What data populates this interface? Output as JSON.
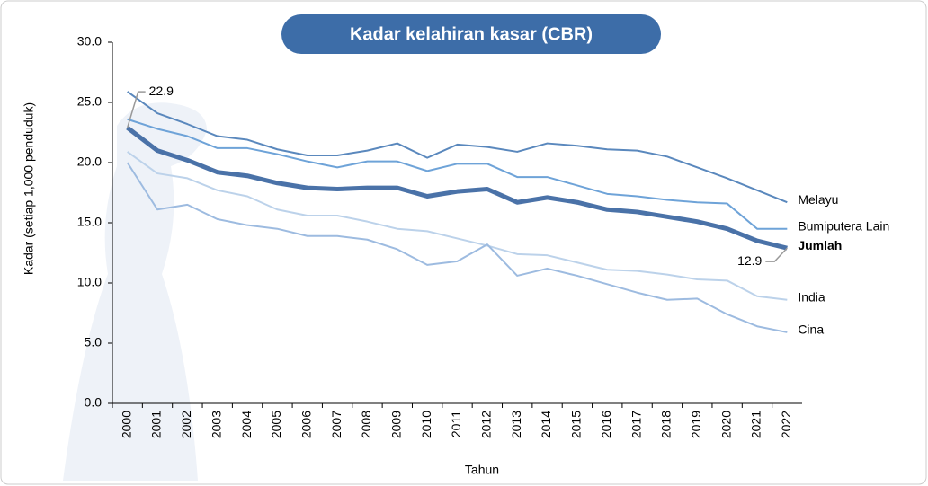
{
  "chart_data": {
    "type": "line",
    "title": "Kadar kelahiran kasar (CBR)",
    "y_label": "Kadar (setiap 1,000 penduduk)",
    "x_label": "Tahun",
    "categories": [
      "2000",
      "2001",
      "2002",
      "2003",
      "2004",
      "2005",
      "2006",
      "2007",
      "2008",
      "2009",
      "2010",
      "2011",
      "2012",
      "2013",
      "2014",
      "2015",
      "2016",
      "2017",
      "2018",
      "2019",
      "2020",
      "2021",
      "2022"
    ],
    "series": [
      {
        "name": "Melayu",
        "color": "#5a88bd",
        "width": 2,
        "values": [
          25.9,
          24.1,
          23.2,
          22.2,
          21.9,
          21.1,
          20.6,
          20.6,
          21.0,
          21.6,
          20.4,
          21.5,
          21.3,
          20.9,
          21.6,
          21.4,
          21.1,
          21.0,
          20.5,
          19.6,
          18.7,
          17.7,
          16.7
        ]
      },
      {
        "name": "Bumiputera Lain",
        "color": "#6ea3d8",
        "width": 2,
        "values": [
          23.6,
          22.8,
          22.2,
          21.2,
          21.2,
          20.7,
          20.1,
          19.6,
          20.1,
          20.1,
          19.3,
          19.9,
          19.9,
          18.8,
          18.8,
          18.1,
          17.4,
          17.2,
          16.9,
          16.7,
          16.6,
          14.5,
          14.5
        ]
      },
      {
        "name": "Jumlah",
        "color": "#4a72a8",
        "width": 5,
        "values": [
          22.9,
          21.0,
          20.2,
          19.2,
          18.9,
          18.3,
          17.9,
          17.8,
          17.9,
          17.9,
          17.2,
          17.6,
          17.8,
          16.7,
          17.1,
          16.7,
          16.1,
          15.9,
          15.5,
          15.1,
          14.5,
          13.5,
          12.9
        ]
      },
      {
        "name": "India",
        "color": "#bcd2ea",
        "width": 2,
        "values": [
          20.9,
          19.1,
          18.7,
          17.7,
          17.2,
          16.1,
          15.6,
          15.6,
          15.1,
          14.5,
          14.3,
          13.7,
          13.1,
          12.4,
          12.3,
          11.7,
          11.1,
          11.0,
          10.7,
          10.3,
          10.2,
          8.9,
          8.6
        ]
      },
      {
        "name": "Cina",
        "color": "#9dbbe0",
        "width": 2,
        "values": [
          20.0,
          16.1,
          16.5,
          15.3,
          14.8,
          14.5,
          13.9,
          13.9,
          13.6,
          12.8,
          11.5,
          11.8,
          13.2,
          10.6,
          11.2,
          10.6,
          9.9,
          9.2,
          8.6,
          8.7,
          7.4,
          6.4,
          5.9
        ]
      }
    ],
    "ylim": [
      0,
      30
    ],
    "yticks": [
      {
        "value": 0,
        "label": "0.0"
      },
      {
        "value": 5,
        "label": "5.0"
      },
      {
        "value": 10,
        "label": "10.0"
      },
      {
        "value": 15,
        "label": "15.0"
      },
      {
        "value": 20,
        "label": "20.0"
      },
      {
        "value": 25,
        "label": "25.0"
      },
      {
        "value": 30,
        "label": "30.0"
      }
    ],
    "grid": false
  }
}
